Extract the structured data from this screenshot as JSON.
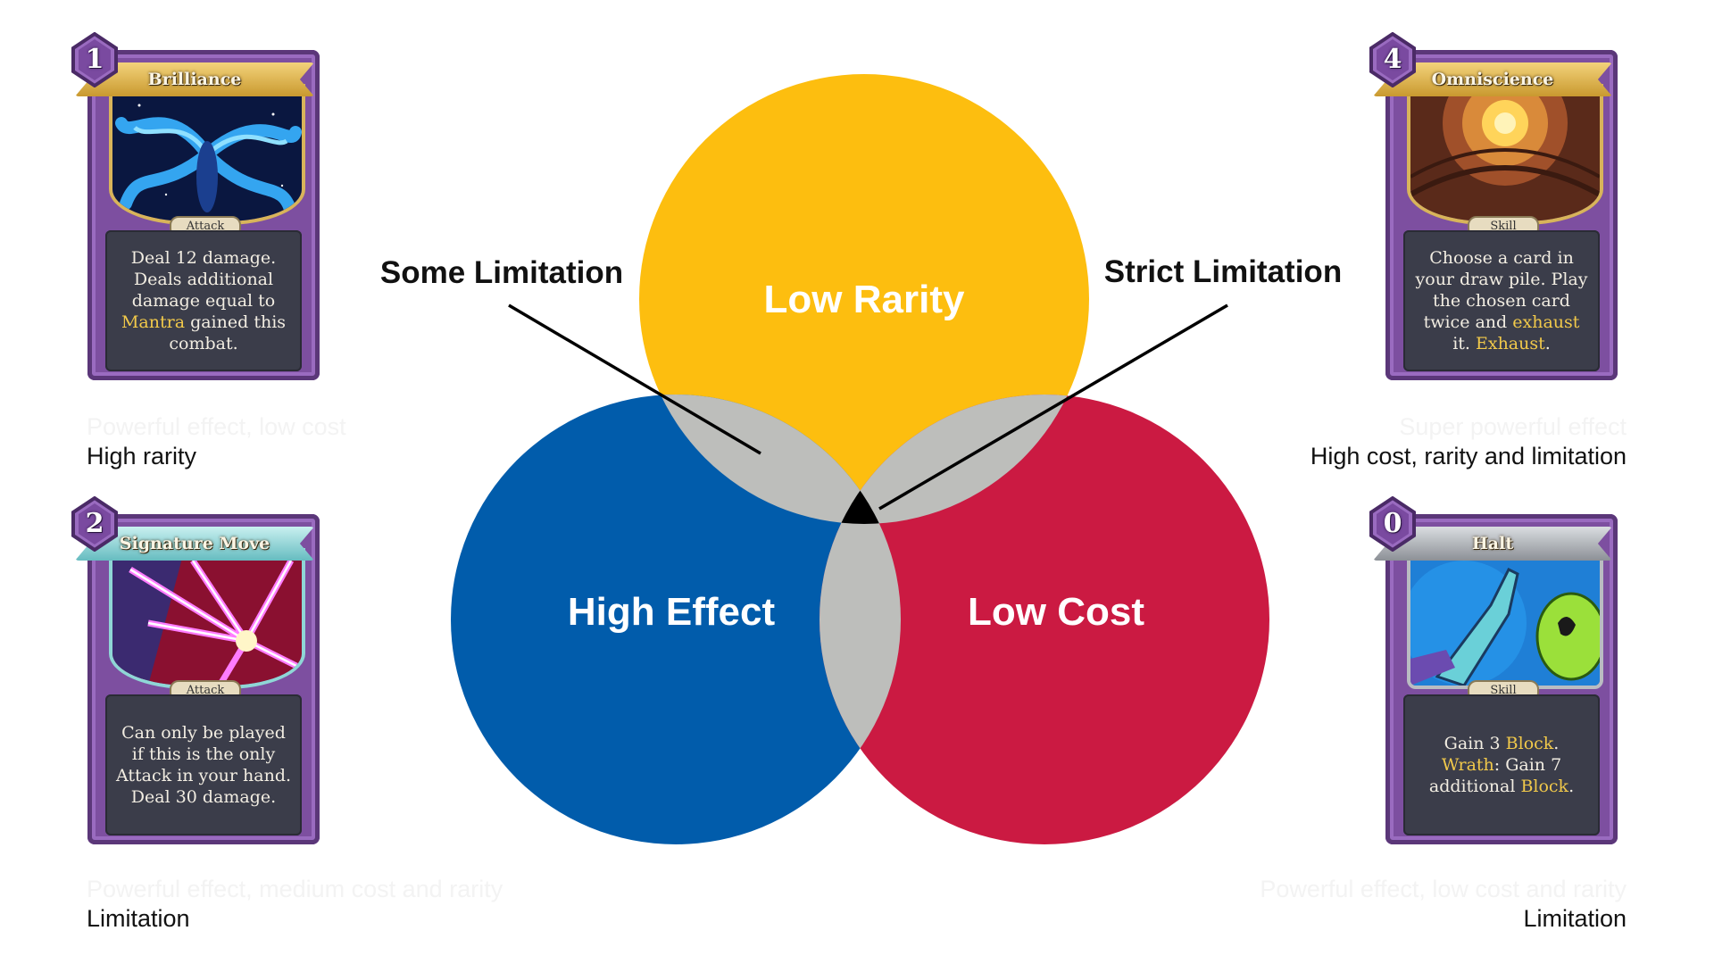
{
  "venn": {
    "circles": [
      {
        "label": "Low Rarity",
        "color": "#fdbe0f"
      },
      {
        "label": "High Effect",
        "color": "#015cab"
      },
      {
        "label": "Low Cost",
        "color": "#cb1a42"
      }
    ],
    "overlap_color": "#bdbebb",
    "center_color": "#000000",
    "callouts": [
      {
        "label": "Some Limitation"
      },
      {
        "label": "Strict Limitation"
      }
    ]
  },
  "cards": [
    {
      "cost": "1",
      "title": "Brilliance",
      "type": "Attack",
      "text_parts": [
        [
          "Deal 12 damage. Deals additional damage equal to ",
          false
        ],
        [
          "Mantra",
          true
        ],
        [
          " gained this combat.",
          false
        ]
      ],
      "faint_caption": "Powerful effect, low cost",
      "caption": "High rarity"
    },
    {
      "cost": "2",
      "title": "Signature Move",
      "type": "Attack",
      "text_parts": [
        [
          "Can only be played if this is the only Attack in your hand. Deal 30 damage.",
          false
        ]
      ],
      "faint_caption": "Powerful effect, medium cost and rarity",
      "caption": "Limitation"
    },
    {
      "cost": "4",
      "title": "Omniscience",
      "type": "Skill",
      "text_parts": [
        [
          "Choose a card in your draw pile. Play the chosen card twice and ",
          false
        ],
        [
          "exhaust",
          true
        ],
        [
          " it. ",
          false
        ],
        [
          "Exhaust",
          true
        ],
        [
          ".",
          false
        ]
      ],
      "faint_caption": "Super powerful effect",
      "caption": "High cost, rarity and limitation"
    },
    {
      "cost": "0",
      "title": "Halt",
      "type": "Skill",
      "text_parts": [
        [
          "Gain 3 ",
          false
        ],
        [
          "Block",
          true
        ],
        [
          ". ",
          false
        ],
        [
          "Wrath",
          true
        ],
        [
          ": Gain 7 additional ",
          false
        ],
        [
          "Block",
          true
        ],
        [
          ".",
          false
        ]
      ],
      "faint_caption": "Powerful effect, low cost and rarity",
      "caption": "Limitation"
    }
  ]
}
